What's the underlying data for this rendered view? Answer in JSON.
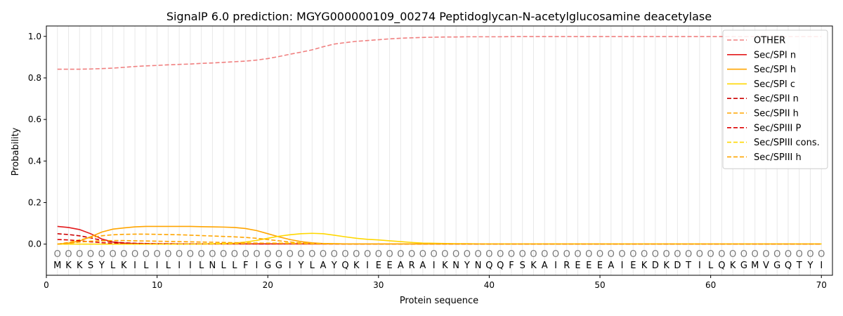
{
  "chart_data": {
    "type": "line",
    "title": "SignalP 6.0 prediction: MGYG000000109_00274 Peptidoglycan-N-acetylglucosamine deacetylase",
    "xlabel": "Protein sequence",
    "ylabel": "Probability",
    "xlim": [
      0,
      71
    ],
    "ylim": [
      -0.15,
      1.05
    ],
    "xticks": [
      0,
      10,
      20,
      30,
      40,
      50,
      60,
      70
    ],
    "yticks": [
      0.0,
      0.2,
      0.4,
      0.6,
      0.8,
      1.0
    ],
    "grid": "vertical lines at each residue",
    "legend_position": "top-right",
    "sequence": [
      "M",
      "K",
      "K",
      "S",
      "Y",
      "L",
      "K",
      "I",
      "L",
      "I",
      "L",
      "I",
      "I",
      "L",
      "N",
      "L",
      "L",
      "F",
      "I",
      "G",
      "G",
      "I",
      "Y",
      "L",
      "A",
      "Y",
      "Q",
      "K",
      "I",
      "E",
      "E",
      "A",
      "R",
      "A",
      "I",
      "K",
      "N",
      "Y",
      "N",
      "Q",
      "Q",
      "F",
      "S",
      "K",
      "A",
      "I",
      "R",
      "E",
      "E",
      "E",
      "A",
      "I",
      "E",
      "K",
      "D",
      "K",
      "D",
      "T",
      "I",
      "L",
      "Q",
      "K",
      "G",
      "M",
      "V",
      "G",
      "Q",
      "T",
      "Y",
      "I"
    ],
    "region_marker": "O",
    "x": [
      1,
      2,
      3,
      4,
      5,
      6,
      7,
      8,
      9,
      10,
      11,
      12,
      13,
      14,
      15,
      16,
      17,
      18,
      19,
      20,
      21,
      22,
      23,
      24,
      25,
      26,
      27,
      28,
      29,
      30,
      31,
      32,
      33,
      34,
      35,
      36,
      37,
      38,
      39,
      40,
      41,
      42,
      43,
      44,
      45,
      46,
      47,
      48,
      49,
      50,
      51,
      52,
      53,
      54,
      55,
      56,
      57,
      58,
      59,
      60,
      61,
      62,
      63,
      64,
      65,
      66,
      67,
      68,
      69,
      70
    ],
    "series": [
      {
        "name": "OTHER",
        "color": "#f08080",
        "dash": "dashed",
        "values": [
          0.842,
          0.842,
          0.842,
          0.843,
          0.845,
          0.847,
          0.851,
          0.855,
          0.858,
          0.86,
          0.863,
          0.865,
          0.867,
          0.87,
          0.872,
          0.875,
          0.878,
          0.881,
          0.886,
          0.893,
          0.903,
          0.914,
          0.924,
          0.935,
          0.95,
          0.963,
          0.97,
          0.976,
          0.98,
          0.984,
          0.988,
          0.991,
          0.993,
          0.995,
          0.996,
          0.997,
          0.997,
          0.998,
          0.998,
          0.998,
          0.998,
          0.999,
          0.999,
          0.999,
          0.999,
          0.999,
          0.999,
          0.999,
          0.999,
          0.999,
          0.999,
          0.999,
          0.999,
          0.999,
          0.999,
          0.999,
          0.999,
          0.999,
          0.999,
          0.999,
          0.999,
          0.999,
          0.999,
          0.999,
          0.999,
          0.999,
          0.999,
          0.999,
          0.999,
          0.999
        ]
      },
      {
        "name": "Sec/SPI n",
        "color": "#e31a1c",
        "dash": "solid",
        "values": [
          0.085,
          0.08,
          0.07,
          0.05,
          0.025,
          0.01,
          0.005,
          0.003,
          0.002,
          0.001,
          0.001,
          0.001,
          0.001,
          0.001,
          0.001,
          0.001,
          0.001,
          0.001,
          0.001,
          0.001,
          0.001,
          0.001,
          0.001,
          0.001,
          0.001,
          0.001,
          0.001,
          0.001,
          0.001,
          0.001,
          0.001,
          0.001,
          0.001,
          0.001,
          0.001,
          0.001,
          0.001,
          0.001,
          0.001,
          0.001,
          0.001,
          0.001,
          0.001,
          0.001,
          0.001,
          0.001,
          0.001,
          0.001,
          0.001,
          0.001,
          0.001,
          0.001,
          0.001,
          0.001,
          0.001,
          0.001,
          0.001,
          0.001,
          0.001,
          0.001,
          0.001,
          0.001,
          0.001,
          0.001,
          0.001,
          0.001,
          0.001,
          0.001,
          0.001,
          0.001
        ]
      },
      {
        "name": "Sec/SPI h",
        "color": "#ffa500",
        "dash": "solid",
        "values": [
          0.0,
          0.005,
          0.015,
          0.035,
          0.058,
          0.072,
          0.078,
          0.083,
          0.085,
          0.085,
          0.085,
          0.085,
          0.085,
          0.084,
          0.083,
          0.082,
          0.08,
          0.075,
          0.065,
          0.05,
          0.035,
          0.022,
          0.012,
          0.006,
          0.003,
          0.002,
          0.001,
          0.001,
          0.001,
          0.001,
          0.001,
          0.001,
          0.001,
          0.001,
          0.001,
          0.001,
          0.001,
          0.001,
          0.001,
          0.001,
          0.001,
          0.001,
          0.001,
          0.001,
          0.001,
          0.001,
          0.001,
          0.001,
          0.001,
          0.001,
          0.001,
          0.001,
          0.001,
          0.001,
          0.001,
          0.001,
          0.001,
          0.001,
          0.001,
          0.001,
          0.001,
          0.001,
          0.001,
          0.001,
          0.001,
          0.001,
          0.001,
          0.001,
          0.001,
          0.001
        ]
      },
      {
        "name": "Sec/SPI c",
        "color": "#ffd700",
        "dash": "solid",
        "values": [
          0.0,
          0.0,
          0.0,
          0.0,
          0.0,
          0.0,
          0.0,
          0.0,
          0.0,
          0.0,
          0.0,
          0.0,
          0.001,
          0.001,
          0.002,
          0.003,
          0.005,
          0.01,
          0.018,
          0.028,
          0.038,
          0.045,
          0.05,
          0.052,
          0.05,
          0.043,
          0.035,
          0.028,
          0.023,
          0.02,
          0.016,
          0.012,
          0.008,
          0.005,
          0.004,
          0.003,
          0.002,
          0.002,
          0.001,
          0.001,
          0.001,
          0.001,
          0.001,
          0.001,
          0.001,
          0.001,
          0.001,
          0.001,
          0.001,
          0.001,
          0.001,
          0.001,
          0.001,
          0.001,
          0.001,
          0.001,
          0.001,
          0.001,
          0.001,
          0.001,
          0.001,
          0.001,
          0.001,
          0.001,
          0.001,
          0.001,
          0.001,
          0.001,
          0.001,
          0.001
        ]
      },
      {
        "name": "Sec/SPII n",
        "color": "#cc0000",
        "dash": "dashed",
        "values": [
          0.05,
          0.046,
          0.04,
          0.03,
          0.018,
          0.01,
          0.006,
          0.004,
          0.003,
          0.002,
          0.002,
          0.001,
          0.001,
          0.001,
          0.001,
          0.001,
          0.001,
          0.001,
          0.001,
          0.001,
          0.001,
          0.001,
          0.001,
          0.001,
          0.001,
          0.001,
          0.001,
          0.001,
          0.001,
          0.001,
          0.001,
          0.001,
          0.001,
          0.001,
          0.001,
          0.001,
          0.001,
          0.001,
          0.001,
          0.001,
          0.001,
          0.001,
          0.001,
          0.001,
          0.001,
          0.001,
          0.001,
          0.001,
          0.001,
          0.001,
          0.001,
          0.001,
          0.001,
          0.001,
          0.001,
          0.001,
          0.001,
          0.001,
          0.001,
          0.001,
          0.001,
          0.001,
          0.001,
          0.001,
          0.001,
          0.001,
          0.001,
          0.001,
          0.001,
          0.001
        ]
      },
      {
        "name": "Sec/SPII h",
        "color": "#ffa500",
        "dash": "dashed",
        "values": [
          0.0,
          0.008,
          0.02,
          0.032,
          0.04,
          0.045,
          0.047,
          0.048,
          0.048,
          0.047,
          0.046,
          0.045,
          0.043,
          0.041,
          0.039,
          0.037,
          0.035,
          0.032,
          0.028,
          0.022,
          0.016,
          0.01,
          0.006,
          0.003,
          0.002,
          0.001,
          0.001,
          0.001,
          0.001,
          0.001,
          0.001,
          0.001,
          0.001,
          0.001,
          0.001,
          0.001,
          0.001,
          0.001,
          0.001,
          0.001,
          0.001,
          0.001,
          0.001,
          0.001,
          0.001,
          0.001,
          0.001,
          0.001,
          0.001,
          0.001,
          0.001,
          0.001,
          0.001,
          0.001,
          0.001,
          0.001,
          0.001,
          0.001,
          0.001,
          0.001,
          0.001,
          0.001,
          0.001,
          0.001,
          0.001,
          0.001,
          0.001,
          0.001,
          0.001,
          0.001
        ]
      },
      {
        "name": "Sec/SPIII P",
        "color": "#dd0000",
        "dash": "dashed",
        "values": [
          0.022,
          0.02,
          0.016,
          0.011,
          0.007,
          0.004,
          0.002,
          0.001,
          0.001,
          0.001,
          0.001,
          0.001,
          0.001,
          0.001,
          0.001,
          0.001,
          0.001,
          0.001,
          0.001,
          0.001,
          0.001,
          0.001,
          0.001,
          0.001,
          0.001,
          0.001,
          0.001,
          0.001,
          0.001,
          0.001,
          0.001,
          0.001,
          0.001,
          0.001,
          0.001,
          0.001,
          0.001,
          0.001,
          0.001,
          0.001,
          0.001,
          0.001,
          0.001,
          0.001,
          0.001,
          0.001,
          0.001,
          0.001,
          0.001,
          0.001,
          0.001,
          0.001,
          0.001,
          0.001,
          0.001,
          0.001,
          0.001,
          0.001,
          0.001,
          0.001,
          0.001,
          0.001,
          0.001,
          0.001,
          0.001,
          0.001,
          0.001,
          0.001,
          0.001,
          0.001
        ]
      },
      {
        "name": "Sec/SPIII cons.",
        "color": "#ffd700",
        "dash": "dashed",
        "values": [
          0.0,
          0.0,
          0.0,
          0.0,
          0.0,
          0.0,
          0.0,
          0.0,
          0.0,
          0.0,
          0.0,
          0.0,
          0.0,
          0.0,
          0.001,
          0.001,
          0.002,
          0.003,
          0.004,
          0.005,
          0.005,
          0.005,
          0.004,
          0.003,
          0.002,
          0.002,
          0.001,
          0.001,
          0.001,
          0.001,
          0.001,
          0.001,
          0.001,
          0.001,
          0.001,
          0.001,
          0.001,
          0.001,
          0.001,
          0.001,
          0.001,
          0.001,
          0.001,
          0.001,
          0.001,
          0.001,
          0.001,
          0.001,
          0.001,
          0.001,
          0.001,
          0.001,
          0.001,
          0.001,
          0.001,
          0.001,
          0.001,
          0.001,
          0.001,
          0.001,
          0.001,
          0.001,
          0.001,
          0.001,
          0.001,
          0.001,
          0.001,
          0.001,
          0.001,
          0.001
        ]
      },
      {
        "name": "Sec/SPIII h",
        "color": "#ffa500",
        "dash": "dashed",
        "values": [
          0.0,
          0.004,
          0.01,
          0.014,
          0.016,
          0.017,
          0.017,
          0.016,
          0.015,
          0.014,
          0.013,
          0.012,
          0.011,
          0.01,
          0.009,
          0.008,
          0.007,
          0.006,
          0.005,
          0.004,
          0.003,
          0.002,
          0.002,
          0.001,
          0.001,
          0.001,
          0.001,
          0.001,
          0.001,
          0.001,
          0.001,
          0.001,
          0.001,
          0.001,
          0.001,
          0.001,
          0.001,
          0.001,
          0.001,
          0.001,
          0.001,
          0.001,
          0.001,
          0.001,
          0.001,
          0.001,
          0.001,
          0.001,
          0.001,
          0.001,
          0.001,
          0.001,
          0.001,
          0.001,
          0.001,
          0.001,
          0.001,
          0.001,
          0.001,
          0.001,
          0.001,
          0.001,
          0.001,
          0.001,
          0.001,
          0.001,
          0.001,
          0.001,
          0.001,
          0.001
        ]
      }
    ]
  }
}
